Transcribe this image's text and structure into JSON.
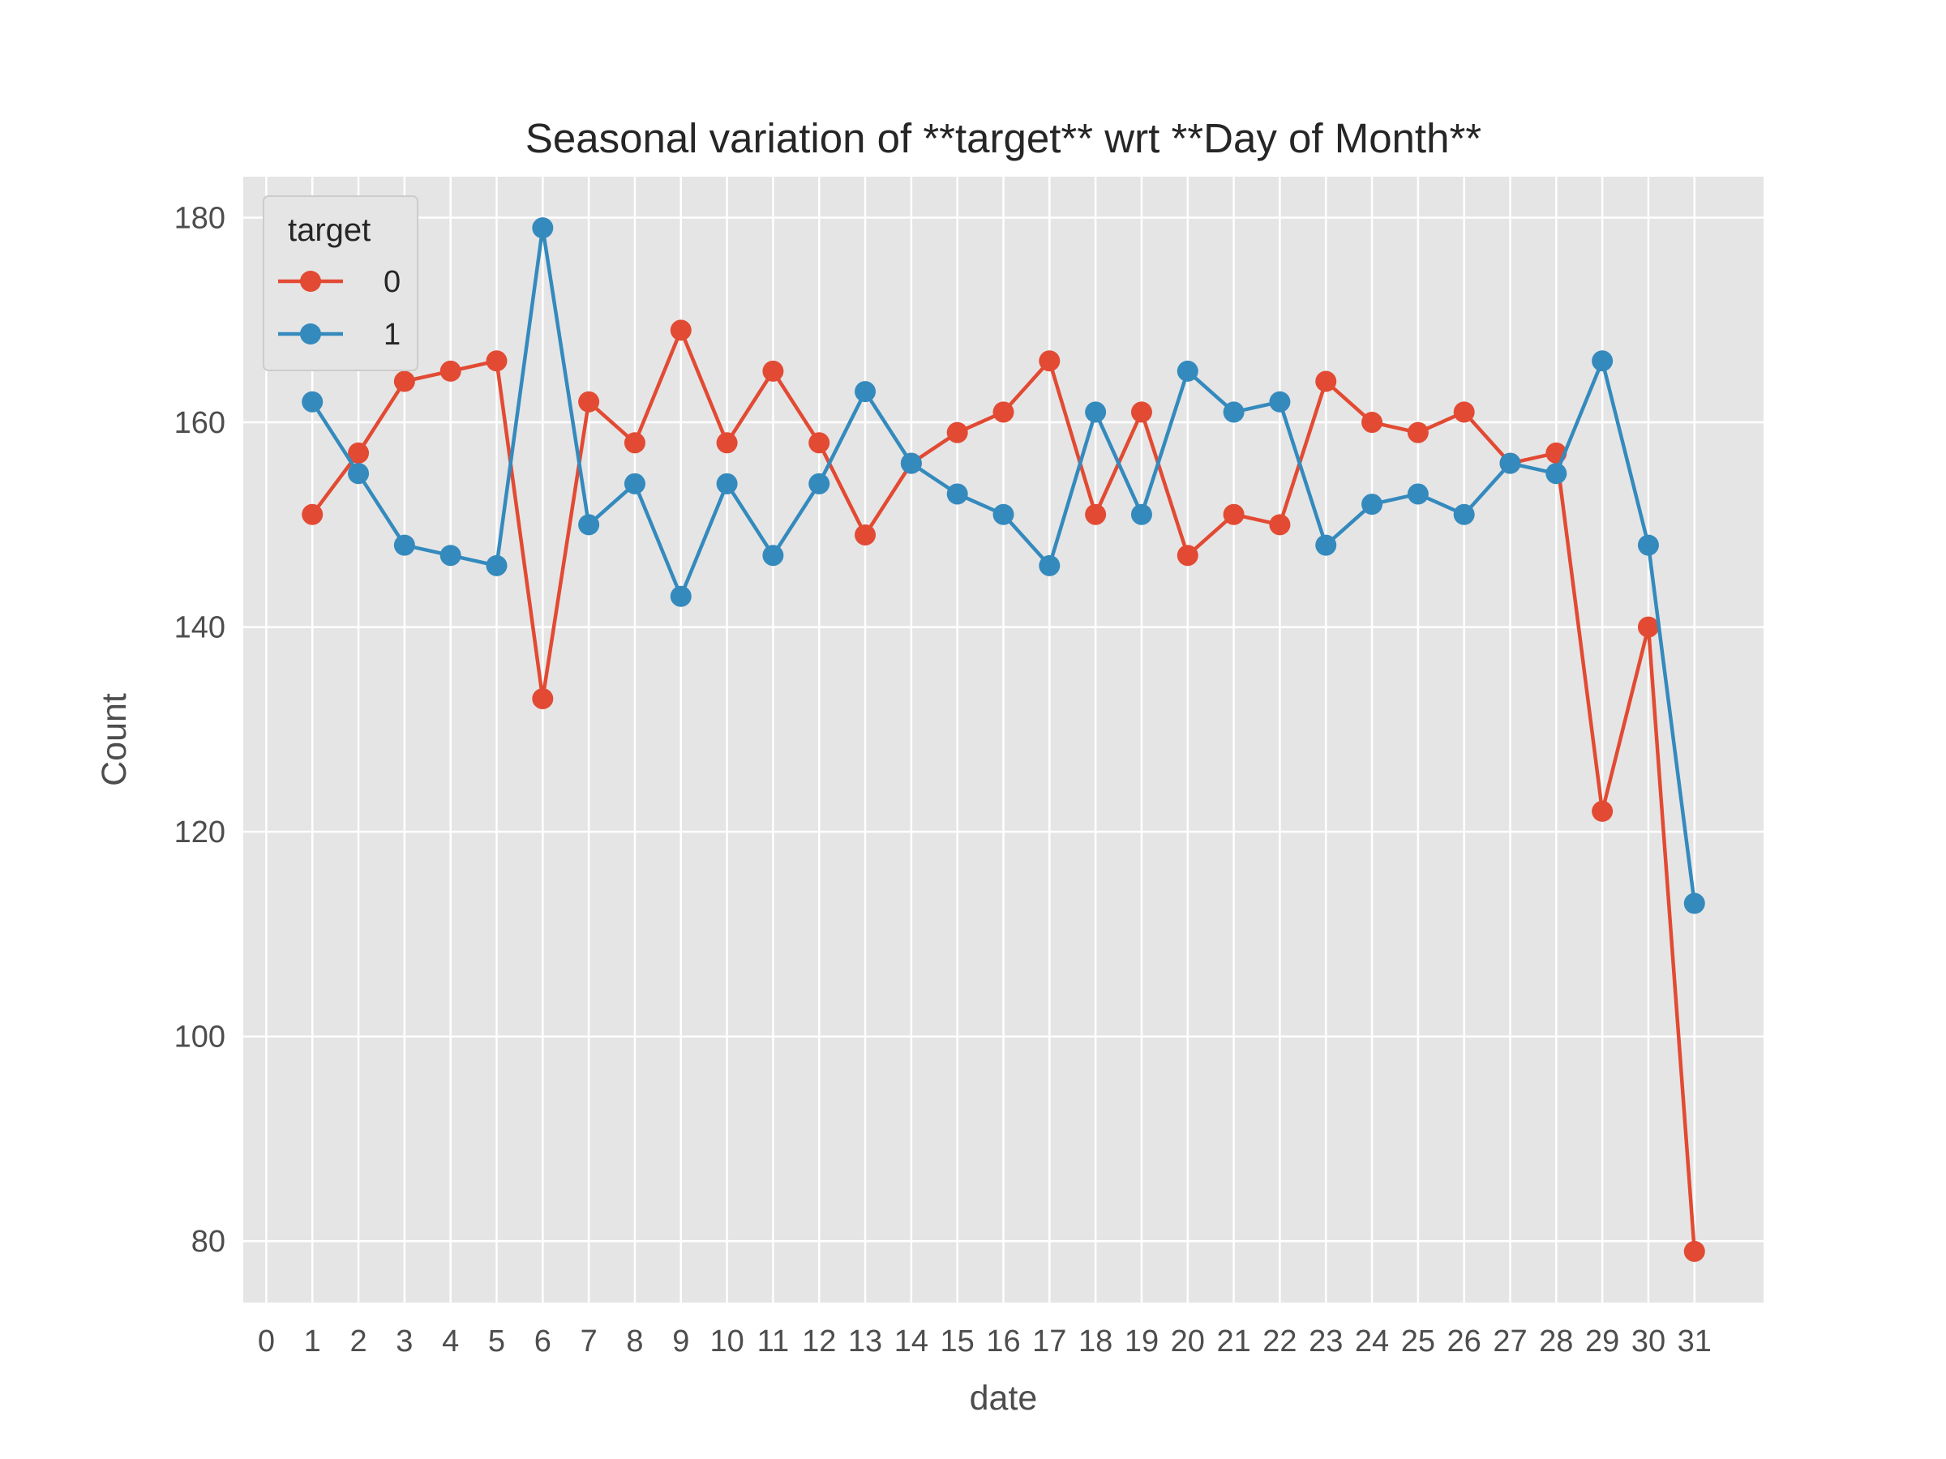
{
  "chart_data": {
    "type": "line",
    "title": "Seasonal variation of **target** wrt **Day of Month**",
    "xlabel": "date",
    "ylabel": "Count",
    "x_ticks": [
      "0",
      "1",
      "2",
      "3",
      "4",
      "5",
      "6",
      "7",
      "8",
      "9",
      "10",
      "11",
      "12",
      "13",
      "14",
      "15",
      "16",
      "17",
      "18",
      "19",
      "20",
      "21",
      "22",
      "23",
      "24",
      "25",
      "26",
      "27",
      "28",
      "29",
      "30",
      "31"
    ],
    "y_ticks": [
      "80",
      "100",
      "120",
      "140",
      "160",
      "180"
    ],
    "ylim": [
      74,
      184
    ],
    "xlim": [
      -0.5,
      32.5
    ],
    "grid": true,
    "legend": {
      "title": "target",
      "placement": "top-left"
    },
    "series": [
      {
        "name": "0",
        "color": "#E24A33",
        "x": [
          1,
          2,
          3,
          4,
          5,
          6,
          7,
          8,
          9,
          10,
          11,
          12,
          13,
          14,
          15,
          16,
          17,
          18,
          19,
          20,
          21,
          22,
          23,
          24,
          25,
          26,
          27,
          28,
          29,
          30,
          31
        ],
        "values": [
          151,
          157,
          164,
          165,
          166,
          133,
          162,
          158,
          169,
          158,
          165,
          158,
          149,
          156,
          159,
          161,
          166,
          151,
          161,
          147,
          151,
          150,
          164,
          160,
          159,
          161,
          156,
          157,
          122,
          140,
          79
        ]
      },
      {
        "name": "1",
        "color": "#348ABD",
        "x": [
          1,
          2,
          3,
          4,
          5,
          6,
          7,
          8,
          9,
          10,
          11,
          12,
          13,
          14,
          15,
          16,
          17,
          18,
          19,
          20,
          21,
          22,
          23,
          24,
          25,
          26,
          27,
          28,
          29,
          30,
          31
        ],
        "values": [
          162,
          155,
          148,
          147,
          146,
          179,
          150,
          154,
          143,
          154,
          147,
          154,
          163,
          156,
          153,
          151,
          146,
          161,
          151,
          165,
          161,
          162,
          148,
          152,
          153,
          151,
          156,
          155,
          166,
          148,
          113
        ]
      }
    ]
  }
}
